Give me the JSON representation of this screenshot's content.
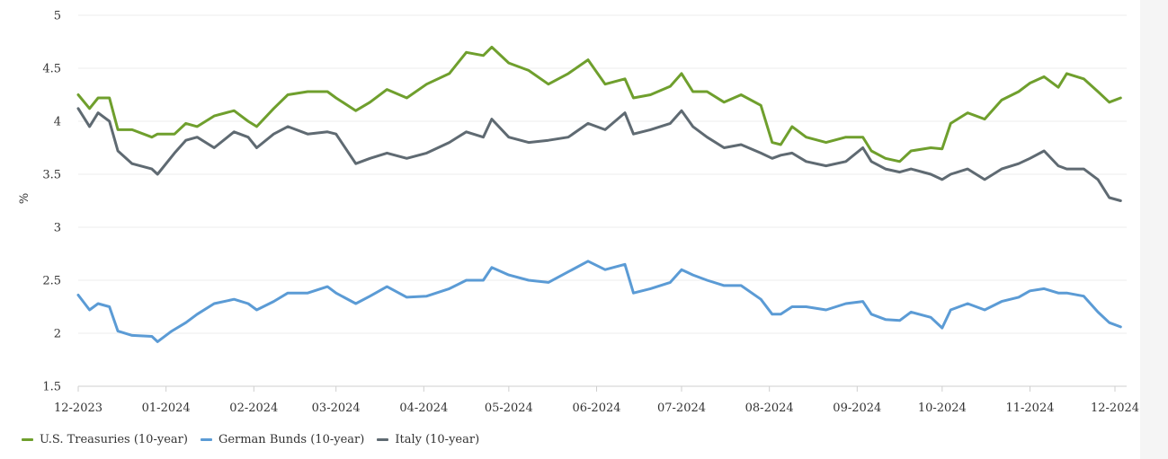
{
  "chart_data": {
    "type": "line",
    "title": "",
    "xlabel": "",
    "ylabel": "%",
    "ylim": [
      1.5,
      5
    ],
    "yticks": [
      "1.5",
      "2",
      "2.5",
      "3",
      "3.5",
      "4",
      "4.5",
      "5"
    ],
    "xticks": [
      "12-2023",
      "01-2024",
      "02-2024",
      "03-2024",
      "04-2024",
      "05-2024",
      "06-2024",
      "07-2024",
      "08-2024",
      "09-2024",
      "10-2024",
      "11-2024",
      "12-2024"
    ],
    "grid": "horizontal",
    "legend_position": "bottom-left",
    "series": [
      {
        "name": "U.S. Treasuries (10-year)",
        "color": "#6f9f2d",
        "points": [
          [
            "2023-12-01",
            4.25
          ],
          [
            "2023-12-05",
            4.12
          ],
          [
            "2023-12-08",
            4.22
          ],
          [
            "2023-12-12",
            4.22
          ],
          [
            "2023-12-15",
            3.92
          ],
          [
            "2023-12-20",
            3.92
          ],
          [
            "2023-12-27",
            3.85
          ],
          [
            "2023-12-29",
            3.88
          ],
          [
            "2024-01-04",
            3.88
          ],
          [
            "2024-01-08",
            3.98
          ],
          [
            "2024-01-12",
            3.95
          ],
          [
            "2024-01-18",
            4.05
          ],
          [
            "2024-01-25",
            4.1
          ],
          [
            "2024-01-30",
            4.0
          ],
          [
            "2024-02-02",
            3.95
          ],
          [
            "2024-02-08",
            4.12
          ],
          [
            "2024-02-13",
            4.25
          ],
          [
            "2024-02-20",
            4.28
          ],
          [
            "2024-02-27",
            4.28
          ],
          [
            "2024-03-01",
            4.22
          ],
          [
            "2024-03-08",
            4.1
          ],
          [
            "2024-03-13",
            4.18
          ],
          [
            "2024-03-19",
            4.3
          ],
          [
            "2024-03-26",
            4.22
          ],
          [
            "2024-04-02",
            4.35
          ],
          [
            "2024-04-10",
            4.45
          ],
          [
            "2024-04-16",
            4.65
          ],
          [
            "2024-04-22",
            4.62
          ],
          [
            "2024-04-25",
            4.7
          ],
          [
            "2024-05-01",
            4.55
          ],
          [
            "2024-05-08",
            4.48
          ],
          [
            "2024-05-15",
            4.35
          ],
          [
            "2024-05-22",
            4.45
          ],
          [
            "2024-05-29",
            4.58
          ],
          [
            "2024-06-04",
            4.35
          ],
          [
            "2024-06-11",
            4.4
          ],
          [
            "2024-06-14",
            4.22
          ],
          [
            "2024-06-20",
            4.25
          ],
          [
            "2024-06-27",
            4.33
          ],
          [
            "2024-07-01",
            4.45
          ],
          [
            "2024-07-05",
            4.28
          ],
          [
            "2024-07-10",
            4.28
          ],
          [
            "2024-07-16",
            4.18
          ],
          [
            "2024-07-22",
            4.25
          ],
          [
            "2024-07-29",
            4.15
          ],
          [
            "2024-08-02",
            3.8
          ],
          [
            "2024-08-05",
            3.78
          ],
          [
            "2024-08-09",
            3.95
          ],
          [
            "2024-08-14",
            3.85
          ],
          [
            "2024-08-21",
            3.8
          ],
          [
            "2024-08-28",
            3.85
          ],
          [
            "2024-09-03",
            3.85
          ],
          [
            "2024-09-06",
            3.72
          ],
          [
            "2024-09-11",
            3.65
          ],
          [
            "2024-09-16",
            3.62
          ],
          [
            "2024-09-20",
            3.72
          ],
          [
            "2024-09-27",
            3.75
          ],
          [
            "2024-10-01",
            3.74
          ],
          [
            "2024-10-04",
            3.98
          ],
          [
            "2024-10-10",
            4.08
          ],
          [
            "2024-10-16",
            4.02
          ],
          [
            "2024-10-22",
            4.2
          ],
          [
            "2024-10-28",
            4.28
          ],
          [
            "2024-11-01",
            4.36
          ],
          [
            "2024-11-06",
            4.42
          ],
          [
            "2024-11-11",
            4.32
          ],
          [
            "2024-11-14",
            4.45
          ],
          [
            "2024-11-20",
            4.4
          ],
          [
            "2024-11-25",
            4.28
          ],
          [
            "2024-11-29",
            4.18
          ],
          [
            "2024-12-03",
            4.22
          ]
        ]
      },
      {
        "name": "German Bunds (10-year)",
        "color": "#5b9bd5",
        "points": [
          [
            "2023-12-01",
            2.36
          ],
          [
            "2023-12-05",
            2.22
          ],
          [
            "2023-12-08",
            2.28
          ],
          [
            "2023-12-12",
            2.25
          ],
          [
            "2023-12-15",
            2.02
          ],
          [
            "2023-12-20",
            1.98
          ],
          [
            "2023-12-27",
            1.97
          ],
          [
            "2023-12-29",
            1.92
          ],
          [
            "2024-01-03",
            2.02
          ],
          [
            "2024-01-08",
            2.1
          ],
          [
            "2024-01-12",
            2.18
          ],
          [
            "2024-01-18",
            2.28
          ],
          [
            "2024-01-25",
            2.32
          ],
          [
            "2024-01-30",
            2.28
          ],
          [
            "2024-02-02",
            2.22
          ],
          [
            "2024-02-08",
            2.3
          ],
          [
            "2024-02-13",
            2.38
          ],
          [
            "2024-02-20",
            2.38
          ],
          [
            "2024-02-27",
            2.44
          ],
          [
            "2024-03-01",
            2.38
          ],
          [
            "2024-03-08",
            2.28
          ],
          [
            "2024-03-13",
            2.35
          ],
          [
            "2024-03-19",
            2.44
          ],
          [
            "2024-03-26",
            2.34
          ],
          [
            "2024-04-02",
            2.35
          ],
          [
            "2024-04-10",
            2.42
          ],
          [
            "2024-04-16",
            2.5
          ],
          [
            "2024-04-22",
            2.5
          ],
          [
            "2024-04-25",
            2.62
          ],
          [
            "2024-05-01",
            2.55
          ],
          [
            "2024-05-08",
            2.5
          ],
          [
            "2024-05-15",
            2.48
          ],
          [
            "2024-05-22",
            2.58
          ],
          [
            "2024-05-29",
            2.68
          ],
          [
            "2024-06-04",
            2.6
          ],
          [
            "2024-06-11",
            2.65
          ],
          [
            "2024-06-14",
            2.38
          ],
          [
            "2024-06-20",
            2.42
          ],
          [
            "2024-06-27",
            2.48
          ],
          [
            "2024-07-01",
            2.6
          ],
          [
            "2024-07-05",
            2.55
          ],
          [
            "2024-07-10",
            2.5
          ],
          [
            "2024-07-16",
            2.45
          ],
          [
            "2024-07-22",
            2.45
          ],
          [
            "2024-07-29",
            2.32
          ],
          [
            "2024-08-02",
            2.18
          ],
          [
            "2024-08-05",
            2.18
          ],
          [
            "2024-08-09",
            2.25
          ],
          [
            "2024-08-14",
            2.25
          ],
          [
            "2024-08-21",
            2.22
          ],
          [
            "2024-08-28",
            2.28
          ],
          [
            "2024-09-03",
            2.3
          ],
          [
            "2024-09-06",
            2.18
          ],
          [
            "2024-09-11",
            2.13
          ],
          [
            "2024-09-16",
            2.12
          ],
          [
            "2024-09-20",
            2.2
          ],
          [
            "2024-09-27",
            2.15
          ],
          [
            "2024-10-01",
            2.05
          ],
          [
            "2024-10-04",
            2.22
          ],
          [
            "2024-10-10",
            2.28
          ],
          [
            "2024-10-16",
            2.22
          ],
          [
            "2024-10-22",
            2.3
          ],
          [
            "2024-10-28",
            2.34
          ],
          [
            "2024-11-01",
            2.4
          ],
          [
            "2024-11-06",
            2.42
          ],
          [
            "2024-11-11",
            2.38
          ],
          [
            "2024-11-14",
            2.38
          ],
          [
            "2024-11-20",
            2.35
          ],
          [
            "2024-11-25",
            2.2
          ],
          [
            "2024-11-29",
            2.1
          ],
          [
            "2024-12-03",
            2.06
          ]
        ]
      },
      {
        "name": "Italy (10-year)",
        "color": "#5f6a72",
        "points": [
          [
            "2023-12-01",
            4.12
          ],
          [
            "2023-12-05",
            3.95
          ],
          [
            "2023-12-08",
            4.08
          ],
          [
            "2023-12-12",
            4.0
          ],
          [
            "2023-12-15",
            3.72
          ],
          [
            "2023-12-20",
            3.6
          ],
          [
            "2023-12-27",
            3.55
          ],
          [
            "2023-12-29",
            3.5
          ],
          [
            "2024-01-04",
            3.7
          ],
          [
            "2024-01-08",
            3.82
          ],
          [
            "2024-01-12",
            3.85
          ],
          [
            "2024-01-18",
            3.75
          ],
          [
            "2024-01-25",
            3.9
          ],
          [
            "2024-01-30",
            3.85
          ],
          [
            "2024-02-02",
            3.75
          ],
          [
            "2024-02-08",
            3.88
          ],
          [
            "2024-02-13",
            3.95
          ],
          [
            "2024-02-20",
            3.88
          ],
          [
            "2024-02-27",
            3.9
          ],
          [
            "2024-03-01",
            3.88
          ],
          [
            "2024-03-08",
            3.6
          ],
          [
            "2024-03-13",
            3.65
          ],
          [
            "2024-03-19",
            3.7
          ],
          [
            "2024-03-26",
            3.65
          ],
          [
            "2024-04-02",
            3.7
          ],
          [
            "2024-04-10",
            3.8
          ],
          [
            "2024-04-16",
            3.9
          ],
          [
            "2024-04-22",
            3.85
          ],
          [
            "2024-04-25",
            4.02
          ],
          [
            "2024-05-01",
            3.85
          ],
          [
            "2024-05-08",
            3.8
          ],
          [
            "2024-05-15",
            3.82
          ],
          [
            "2024-05-22",
            3.85
          ],
          [
            "2024-05-29",
            3.98
          ],
          [
            "2024-06-04",
            3.92
          ],
          [
            "2024-06-11",
            4.08
          ],
          [
            "2024-06-14",
            3.88
          ],
          [
            "2024-06-20",
            3.92
          ],
          [
            "2024-06-27",
            3.98
          ],
          [
            "2024-07-01",
            4.1
          ],
          [
            "2024-07-05",
            3.95
          ],
          [
            "2024-07-10",
            3.85
          ],
          [
            "2024-07-16",
            3.75
          ],
          [
            "2024-07-22",
            3.78
          ],
          [
            "2024-07-29",
            3.7
          ],
          [
            "2024-08-02",
            3.65
          ],
          [
            "2024-08-05",
            3.68
          ],
          [
            "2024-08-09",
            3.7
          ],
          [
            "2024-08-14",
            3.62
          ],
          [
            "2024-08-21",
            3.58
          ],
          [
            "2024-08-28",
            3.62
          ],
          [
            "2024-09-03",
            3.75
          ],
          [
            "2024-09-06",
            3.62
          ],
          [
            "2024-09-11",
            3.55
          ],
          [
            "2024-09-16",
            3.52
          ],
          [
            "2024-09-20",
            3.55
          ],
          [
            "2024-09-27",
            3.5
          ],
          [
            "2024-10-01",
            3.45
          ],
          [
            "2024-10-04",
            3.5
          ],
          [
            "2024-10-10",
            3.55
          ],
          [
            "2024-10-16",
            3.45
          ],
          [
            "2024-10-22",
            3.55
          ],
          [
            "2024-10-28",
            3.6
          ],
          [
            "2024-11-01",
            3.65
          ],
          [
            "2024-11-06",
            3.72
          ],
          [
            "2024-11-11",
            3.58
          ],
          [
            "2024-11-14",
            3.55
          ],
          [
            "2024-11-20",
            3.55
          ],
          [
            "2024-11-25",
            3.45
          ],
          [
            "2024-11-29",
            3.28
          ],
          [
            "2024-12-03",
            3.25
          ]
        ]
      }
    ]
  },
  "legend": {
    "items": [
      {
        "label": "U.S. Treasuries (10-year)",
        "color": "#6f9f2d"
      },
      {
        "label": "German Bunds (10-year)",
        "color": "#5b9bd5"
      },
      {
        "label": "Italy (10-year)",
        "color": "#5f6a72"
      }
    ]
  }
}
